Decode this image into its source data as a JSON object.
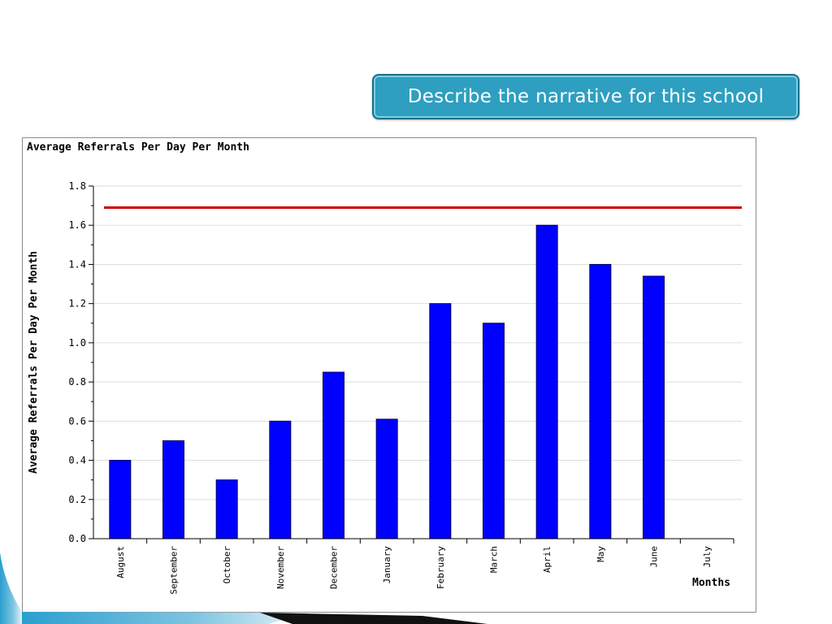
{
  "header": {
    "callout_text": "Describe the narrative for this school"
  },
  "chart_data": {
    "type": "bar",
    "title": "Average Referrals Per Day Per Month",
    "xlabel": "Months",
    "ylabel": "Average Referrals Per Day Per Month",
    "categories": [
      "August",
      "September",
      "October",
      "November",
      "December",
      "January",
      "February",
      "March",
      "April",
      "May",
      "June",
      "July"
    ],
    "values": [
      0.4,
      0.5,
      0.3,
      0.6,
      0.85,
      0.61,
      1.2,
      1.1,
      1.6,
      1.4,
      1.34,
      null
    ],
    "ylim": [
      0,
      1.8
    ],
    "yticks": [
      "0.0",
      "0.2",
      "0.4",
      "0.6",
      "0.8",
      "1.0",
      "1.2",
      "1.4",
      "1.6",
      "1.8"
    ],
    "reference_line": 1.69,
    "grid": true,
    "colors": {
      "bar": "#0000ff",
      "bar_border": "#000066",
      "reference_line": "#cc0000",
      "grid": "#dddddd"
    }
  }
}
